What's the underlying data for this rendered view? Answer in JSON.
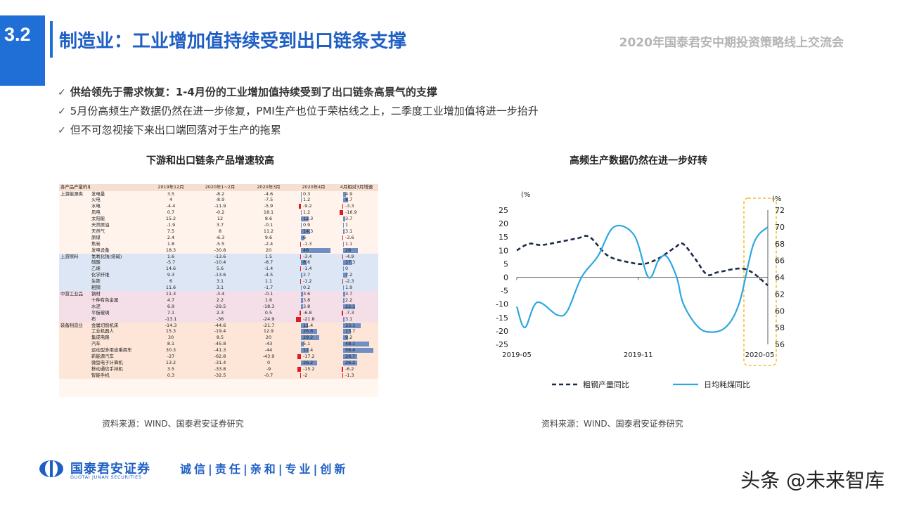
{
  "header": {
    "section": "3.2",
    "title": "制造业：工业增加值持续受到出口链条支撑",
    "event": "2020年国泰君安中期投资策略线上交流会"
  },
  "bullets": [
    "供给领先于需求恢复：1-4月份的工业增加值持续受到了出口链条高景气的支撑",
    "5月份高频生产数据仍然在进一步修复，PMI生产也位于荣枯线之上，二季度工业增加值将进一步抬升",
    "但不可忽视接下来出口端回落对于生产的拖累"
  ],
  "left_chart_title": "下游和出口链条产品增速较高",
  "right_chart_title": "高频生产数据仍然在进一步好转",
  "left_source": "资料来源：WIND、国泰君安证券研究",
  "right_source": "资料来源：WIND、国泰君安证券研究",
  "footer": {
    "brand": "国泰君安证券",
    "brand_en": "GUOTAI JUNAN SECURITIES",
    "motto": "诚信|责任|亲和|专业|创新",
    "watermark": "头条 @未来智库"
  },
  "chart_data": [
    {
      "type": "table",
      "headers": [
        "各产品产量的单月增速",
        "",
        "2019年12月",
        "2020年1~2月",
        "2020年3月",
        "2020年4月",
        "4月相对3月增速"
      ],
      "bar_columns": [
        5,
        6
      ],
      "rows": [
        {
          "group": "上游能源类",
          "item": "发电量",
          "v": [
            3.5,
            -8.2,
            -4.6,
            0.3,
            4.9
          ]
        },
        {
          "group": "",
          "item": "火电",
          "v": [
            4,
            -8.9,
            -7.5,
            1.2,
            8.7
          ]
        },
        {
          "group": "",
          "item": "水电",
          "v": [
            -4.4,
            -11.9,
            -5.9,
            -9.2,
            -3.3
          ]
        },
        {
          "group": "",
          "item": "风电",
          "v": [
            0.7,
            -0.2,
            18.1,
            1.2,
            -16.9
          ]
        },
        {
          "group": "",
          "item": "太阳能",
          "v": [
            15.2,
            12,
            8.6,
            12.3,
            3.7
          ]
        },
        {
          "group": "",
          "item": "天然原油",
          "v": [
            -1.9,
            3.7,
            -0.1,
            0.9,
            1
          ]
        },
        {
          "group": "",
          "item": "天然气",
          "v": [
            7.5,
            8,
            11.2,
            14.3,
            3.1
          ]
        },
        {
          "group": "",
          "item": "原煤",
          "v": [
            2.4,
            -6.3,
            9.6,
            6,
            -3.6
          ]
        },
        {
          "group": "",
          "item": "焦炭",
          "v": [
            1.8,
            -5.5,
            -2.4,
            -1.3,
            1.1
          ]
        },
        {
          "group": "",
          "item": "发电设备",
          "v": [
            18.3,
            -30.8,
            20,
            48,
            28
          ]
        },
        {
          "group": "上游原料",
          "item": "氢氧化钠(烧碱)",
          "v": [
            1.6,
            -13.6,
            1.5,
            -3.4,
            -4.9
          ]
        },
        {
          "group": "",
          "item": "硫酸",
          "v": [
            -5.7,
            -10.4,
            -8.7,
            8.6,
            17.3
          ]
        },
        {
          "group": "",
          "item": "乙烯",
          "v": [
            14.6,
            5.6,
            -1.4,
            -1.4,
            0
          ]
        },
        {
          "group": "",
          "item": "化学纤维",
          "v": [
            9.3,
            -13.6,
            -4.5,
            2.7,
            7.2
          ]
        },
        {
          "group": "",
          "item": "生铁",
          "v": [
            6,
            3.1,
            1.1,
            -1.2,
            -2.3
          ]
        },
        {
          "group": "",
          "item": "粗钢",
          "v": [
            11.6,
            3.1,
            -1.7,
            0.2,
            1.9
          ]
        },
        {
          "group": "中游工业品",
          "item": "钢材",
          "v": [
            11.3,
            -3.4,
            -0.1,
            3.6,
            3.7
          ]
        },
        {
          "group": "",
          "item": "十种有色金属",
          "v": [
            4.7,
            2.2,
            1.6,
            3.8,
            2.2
          ]
        },
        {
          "group": "",
          "item": "水泥",
          "v": [
            6.9,
            -29.5,
            -18.3,
            3.8,
            22.1
          ]
        },
        {
          "group": "",
          "item": "平板玻璃",
          "v": [
            7.1,
            2.3,
            0.5,
            -6.8,
            -7.3
          ]
        },
        {
          "group": "",
          "item": "布",
          "v": [
            -13.1,
            -36,
            -24.9,
            -21.8,
            3.1
          ]
        },
        {
          "group": "装备制造业",
          "item": "金属切削机床",
          "v": [
            -14.3,
            -44.6,
            -21.7,
            11.4,
            33.1
          ]
        },
        {
          "group": "",
          "item": "工业机器人",
          "v": [
            15.3,
            -19.4,
            12.9,
            26.6,
            13.7
          ]
        },
        {
          "group": "",
          "item": "集成电路",
          "v": [
            30,
            8.5,
            20,
            29.2,
            9.2
          ]
        },
        {
          "group": "",
          "item": "汽车",
          "v": [
            8.1,
            -45.8,
            -43,
            5.1,
            48.1
          ]
        },
        {
          "group": "",
          "item": "运动型多用途乘用车",
          "v": [
            30.3,
            -41.3,
            -44,
            12.4,
            56.4
          ]
        },
        {
          "group": "",
          "item": "新能源汽车",
          "v": [
            -27,
            -62.8,
            -43.9,
            -17.2,
            26.7
          ]
        },
        {
          "group": "",
          "item": "微型电子计算机",
          "v": [
            13.2,
            -31.4,
            0,
            26.2,
            26.2
          ]
        },
        {
          "group": "",
          "item": "移动通信手持机",
          "v": [
            3.5,
            -33.8,
            -9,
            -15.2,
            -6.2
          ]
        },
        {
          "group": "",
          "item": "智能手机",
          "v": [
            0.3,
            -32.5,
            -0.7,
            -2,
            -1.3
          ]
        }
      ]
    },
    {
      "type": "line",
      "x_labels": [
        "2019-05",
        "2019-11",
        "2020-05"
      ],
      "left_unit": "(%",
      "right_unit": "(%",
      "left_ylim": [
        -25,
        25
      ],
      "right_ylim": [
        56,
        72
      ],
      "left_ticks": [
        25,
        20,
        15,
        10,
        5,
        0,
        -5,
        -10,
        -15,
        -20,
        -25
      ],
      "right_ticks": [
        72,
        70,
        68,
        66,
        64,
        62,
        60,
        58,
        56
      ],
      "series": [
        {
          "name": "粗钢产量同比",
          "axis": "left",
          "style": "dashed",
          "color": "#1c2a4a",
          "t": [
            0,
            0.6,
            1.2,
            2,
            3,
            3.6,
            4.5,
            5.6,
            6.3,
            7,
            7.8,
            8.2,
            8.8,
            9.4,
            10,
            11.3,
            12.4
          ],
          "values": [
            10,
            12.5,
            12,
            13,
            14.5,
            15,
            8,
            5.5,
            5,
            7,
            11,
            12.5,
            7,
            1,
            2,
            3,
            -3
          ]
        },
        {
          "name": "日均耗煤同比",
          "axis": "right",
          "style": "solid",
          "color": "#2ea7e0",
          "t": [
            0,
            0.4,
            1,
            2,
            2.5,
            3.2,
            4,
            4.8,
            5.8,
            6.5,
            7,
            7.4,
            7.9,
            8.2,
            8.8,
            9.4,
            10.3,
            11,
            11.7,
            12.4
          ],
          "values": [
            60.5,
            58,
            61,
            59.5,
            60,
            64,
            66.5,
            70,
            69,
            64,
            66,
            66.5,
            64,
            61,
            58.5,
            57.5,
            58,
            61,
            68,
            70
          ]
        }
      ],
      "highlight": {
        "from": "2020-05",
        "color": "#f0b400"
      }
    }
  ]
}
